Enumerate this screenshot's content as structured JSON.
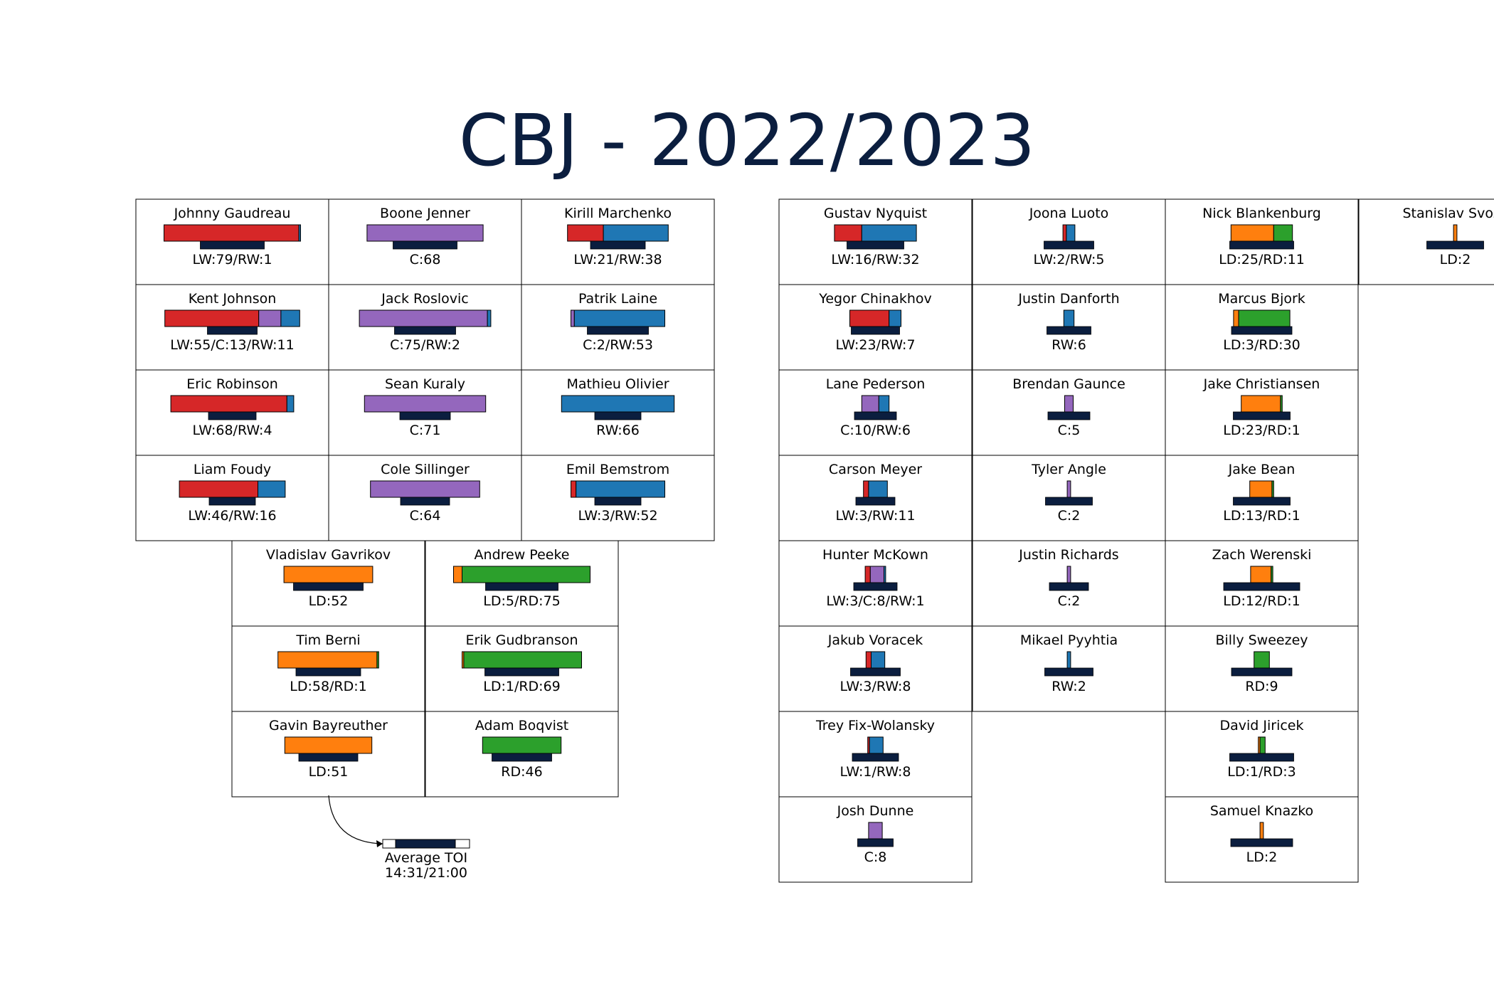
{
  "chart_data": {
    "type": "bar",
    "title": "CBJ - 2022/2023",
    "colors": {
      "LW": "#d62728",
      "C": "#9467bd",
      "RW": "#1f77b4",
      "LD": "#ff7f0e",
      "RD": "#2ca02c",
      "toi": "#0b1e3f"
    },
    "toi_reference": {
      "label": "Average TOI",
      "value": "14:31/21:00"
    },
    "players": [
      {
        "name": "Johnny Gaudreau",
        "positions": [
          [
            "LW",
            79
          ],
          [
            "RW",
            1
          ]
        ],
        "label": "LW:79/RW:1",
        "toi": 0.9
      },
      {
        "name": "Boone Jenner",
        "positions": [
          [
            "C",
            68
          ]
        ],
        "label": "C:68",
        "toi": 0.9
      },
      {
        "name": "Kirill Marchenko",
        "positions": [
          [
            "LW",
            21
          ],
          [
            "RW",
            38
          ]
        ],
        "label": "LW:21/RW:38",
        "toi": 0.77
      },
      {
        "name": "Kent Johnson",
        "positions": [
          [
            "LW",
            55
          ],
          [
            "C",
            13
          ],
          [
            "RW",
            11
          ]
        ],
        "label": "LW:55/C:13/RW:11",
        "toi": 0.7
      },
      {
        "name": "Jack Roslovic",
        "positions": [
          [
            "C",
            75
          ],
          [
            "RW",
            2
          ]
        ],
        "label": "C:75/RW:2",
        "toi": 0.86
      },
      {
        "name": "Patrik Laine",
        "positions": [
          [
            "C",
            2
          ],
          [
            "RW",
            53
          ]
        ],
        "label": "C:2/RW:53",
        "toi": 0.86
      },
      {
        "name": "Eric Robinson",
        "positions": [
          [
            "LW",
            68
          ],
          [
            "RW",
            4
          ]
        ],
        "label": "LW:68/RW:4",
        "toi": 0.67
      },
      {
        "name": "Sean Kuraly",
        "positions": [
          [
            "C",
            71
          ]
        ],
        "label": "C:71",
        "toi": 0.71
      },
      {
        "name": "Mathieu Olivier",
        "positions": [
          [
            "RW",
            66
          ]
        ],
        "label": "RW:66",
        "toi": 0.65
      },
      {
        "name": "Liam Foudy",
        "positions": [
          [
            "LW",
            46
          ],
          [
            "RW",
            16
          ]
        ],
        "label": "LW:46/RW:16",
        "toi": 0.65
      },
      {
        "name": "Cole Sillinger",
        "positions": [
          [
            "C",
            64
          ]
        ],
        "label": "C:64",
        "toi": 0.69
      },
      {
        "name": "Emil Bemstrom",
        "positions": [
          [
            "LW",
            3
          ],
          [
            "RW",
            52
          ]
        ],
        "label": "LW:3/RW:52",
        "toi": 0.65
      },
      {
        "name": "Vladislav Gavrikov",
        "positions": [
          [
            "LD",
            52
          ]
        ],
        "label": "LD:52",
        "toi": 0.98
      },
      {
        "name": "Andrew Peeke",
        "positions": [
          [
            "LD",
            5
          ],
          [
            "RD",
            75
          ]
        ],
        "label": "LD:5/RD:75",
        "toi": 1.02
      },
      {
        "name": "Tim Berni",
        "positions": [
          [
            "LD",
            58
          ],
          [
            "RD",
            1
          ]
        ],
        "label": "LD:58/RD:1",
        "toi": 0.91
      },
      {
        "name": "Erik Gudbranson",
        "positions": [
          [
            "LD",
            1
          ],
          [
            "RD",
            69
          ]
        ],
        "label": "LD:1/RD:69",
        "toi": 1.04
      },
      {
        "name": "Gavin Bayreuther",
        "positions": [
          [
            "LD",
            51
          ]
        ],
        "label": "LD:51",
        "toi": 0.83
      },
      {
        "name": "Adam Boqvist",
        "positions": [
          [
            "RD",
            46
          ]
        ],
        "label": "RD:46",
        "toi": 0.84
      },
      {
        "name": "Gustav Nyquist",
        "positions": [
          [
            "LW",
            16
          ],
          [
            "RW",
            32
          ]
        ],
        "label": "LW:16/RW:32",
        "toi": 0.8
      },
      {
        "name": "Joona Luoto",
        "positions": [
          [
            "LW",
            2
          ],
          [
            "RW",
            5
          ]
        ],
        "label": "LW:2/RW:5",
        "toi": 0.7
      },
      {
        "name": "Nick Blankenburg",
        "positions": [
          [
            "LD",
            25
          ],
          [
            "RD",
            11
          ]
        ],
        "label": "LD:25/RD:11",
        "toi": 0.9
      },
      {
        "name": "Stanislav Svozil",
        "positions": [
          [
            "LD",
            2
          ]
        ],
        "label": "LD:2",
        "toi": 0.8
      },
      {
        "name": "Yegor Chinakhov",
        "positions": [
          [
            "LW",
            23
          ],
          [
            "RW",
            7
          ]
        ],
        "label": "LW:23/RW:7",
        "toi": 0.68
      },
      {
        "name": "Justin Danforth",
        "positions": [
          [
            "RW",
            6
          ]
        ],
        "label": "RW:6",
        "toi": 0.62
      },
      {
        "name": "Marcus Bjork",
        "positions": [
          [
            "LD",
            3
          ],
          [
            "RD",
            30
          ]
        ],
        "label": "LD:3/RD:30",
        "toi": 0.85
      },
      {
        "name": "Lane Pederson",
        "positions": [
          [
            "C",
            10
          ],
          [
            "RW",
            6
          ]
        ],
        "label": "C:10/RW:6",
        "toi": 0.59
      },
      {
        "name": "Brendan Gaunce",
        "positions": [
          [
            "C",
            5
          ]
        ],
        "label": "C:5",
        "toi": 0.59
      },
      {
        "name": "Jake Christiansen",
        "positions": [
          [
            "LD",
            23
          ],
          [
            "RD",
            1
          ]
        ],
        "label": "LD:23/RD:1",
        "toi": 0.8
      },
      {
        "name": "Carson Meyer",
        "positions": [
          [
            "LW",
            3
          ],
          [
            "RW",
            11
          ]
        ],
        "label": "LW:3/RW:11",
        "toi": 0.55
      },
      {
        "name": "Tyler Angle",
        "positions": [
          [
            "C",
            2
          ]
        ],
        "label": "C:2",
        "toi": 0.66
      },
      {
        "name": "Jake Bean",
        "positions": [
          [
            "LD",
            13
          ],
          [
            "RD",
            1
          ]
        ],
        "label": "LD:13/RD:1",
        "toi": 0.8
      },
      {
        "name": "Hunter McKown",
        "positions": [
          [
            "LW",
            3
          ],
          [
            "C",
            8
          ],
          [
            "RW",
            1
          ]
        ],
        "label": "LW:3/C:8/RW:1",
        "toi": 0.61
      },
      {
        "name": "Justin Richards",
        "positions": [
          [
            "C",
            2
          ]
        ],
        "label": "C:2",
        "toi": 0.55
      },
      {
        "name": "Zach Werenski",
        "positions": [
          [
            "LD",
            12
          ],
          [
            "RD",
            1
          ]
        ],
        "label": "LD:12/RD:1",
        "toi": 1.07
      },
      {
        "name": "Jakub Voracek",
        "positions": [
          [
            "LW",
            3
          ],
          [
            "RW",
            8
          ]
        ],
        "label": "LW:3/RW:8",
        "toi": 0.7
      },
      {
        "name": "Mikael Pyyhtia",
        "positions": [
          [
            "RW",
            2
          ]
        ],
        "label": "RW:2",
        "toi": 0.68
      },
      {
        "name": "Billy Sweezey",
        "positions": [
          [
            "RD",
            9
          ]
        ],
        "label": "RD:9",
        "toi": 0.85
      },
      {
        "name": "Trey Fix-Wolansky",
        "positions": [
          [
            "LW",
            1
          ],
          [
            "RW",
            8
          ]
        ],
        "label": "LW:1/RW:8",
        "toi": 0.65
      },
      {
        "name": "David Jiricek",
        "positions": [
          [
            "LD",
            1
          ],
          [
            "RD",
            3
          ]
        ],
        "label": "LD:1/RD:3",
        "toi": 0.9
      },
      {
        "name": "Josh Dunne",
        "positions": [
          [
            "C",
            8
          ]
        ],
        "label": "C:8",
        "toi": 0.5
      },
      {
        "name": "Samuel Knazko",
        "positions": [
          [
            "LD",
            2
          ]
        ],
        "label": "LD:2",
        "toi": 0.87
      }
    ]
  }
}
